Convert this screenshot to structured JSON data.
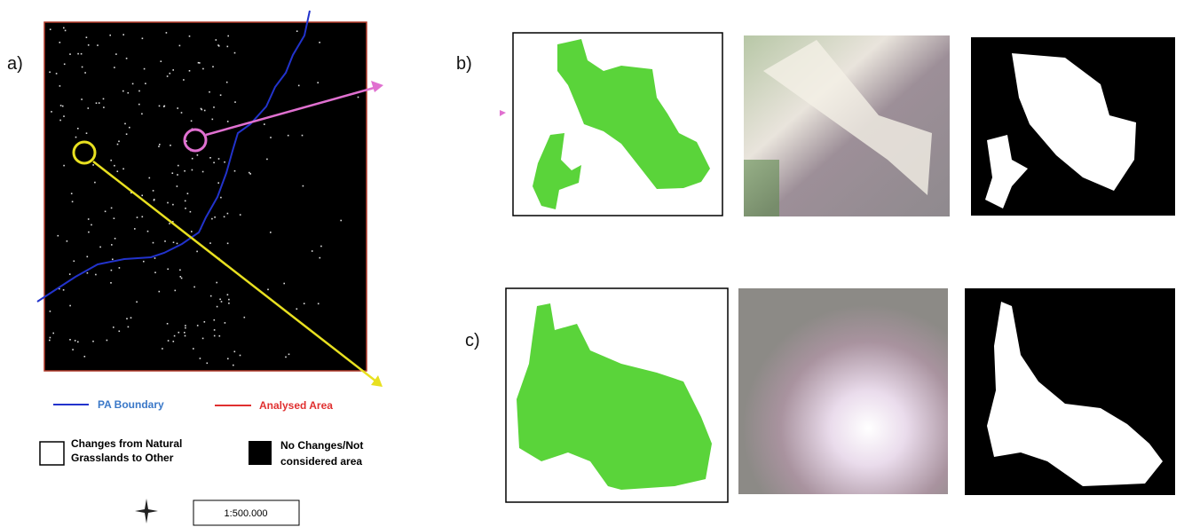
{
  "panels": {
    "a": "a)",
    "b": "b)",
    "c": "c)"
  },
  "legend": {
    "pa_boundary": "PA Boundary",
    "analysed_area": "Analysed Area",
    "changes": [
      "Changes from Natural",
      "Grasslands to Other"
    ],
    "no_changes": [
      "No Changes/Not",
      "considered area"
    ]
  },
  "scale": "1:500.000"
}
